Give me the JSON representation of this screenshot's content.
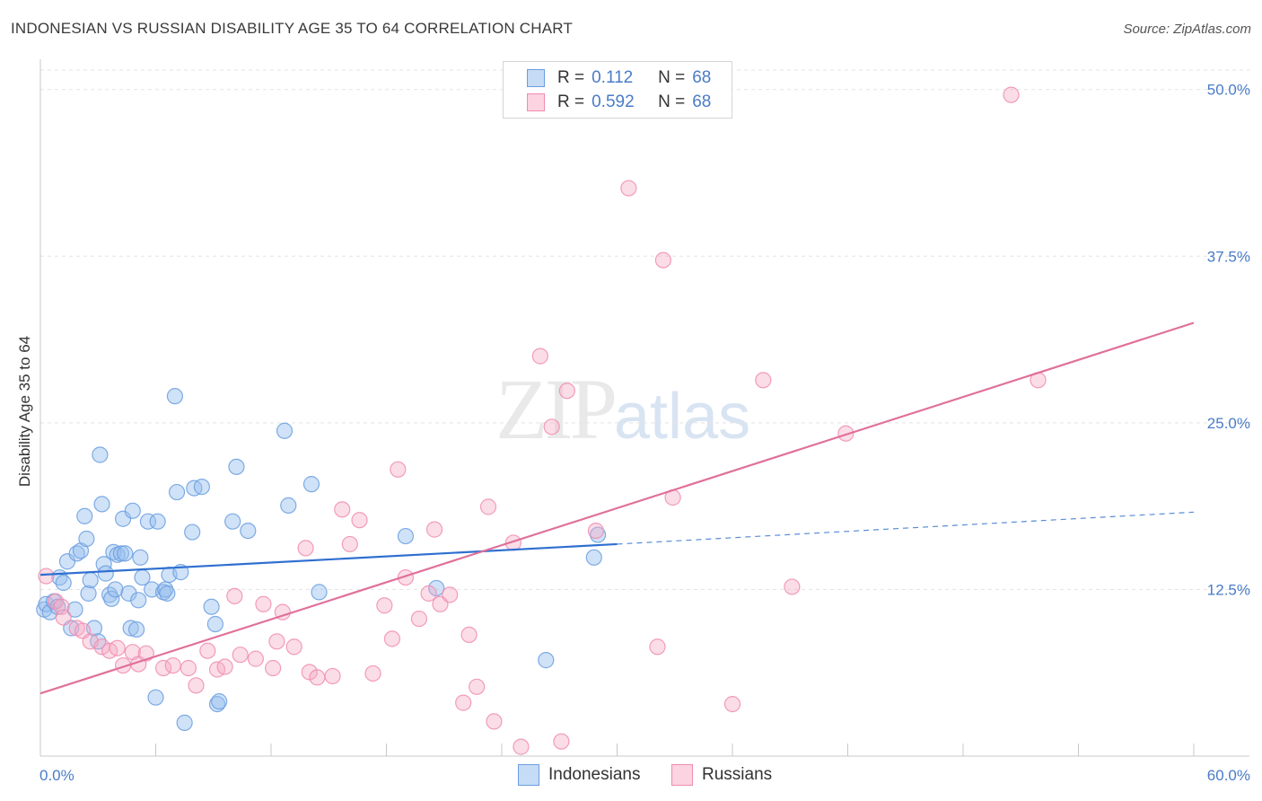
{
  "title": "INDONESIAN VS RUSSIAN DISABILITY AGE 35 TO 64 CORRELATION CHART",
  "source": "Source: ZipAtlas.com",
  "watermark": {
    "zip": "ZIP",
    "atlas": "atlas"
  },
  "legend": {
    "rows": [
      {
        "r_label": "R = ",
        "r_value": "0.112",
        "n_label": "N = ",
        "n_value": "68",
        "color": "#6a9ee0"
      },
      {
        "r_label": "R = ",
        "r_value": "0.592",
        "n_label": "N = ",
        "n_value": "68",
        "color": "#f08cb0"
      }
    ]
  },
  "bottom_legend": [
    {
      "label": "Indonesians",
      "color": "#6a9ee0"
    },
    {
      "label": "Russians",
      "color": "#f08cb0"
    }
  ],
  "chart_data": {
    "type": "scatter",
    "title": "INDONESIAN VS RUSSIAN DISABILITY AGE 35 TO 64 CORRELATION CHART",
    "xlabel": "",
    "ylabel": "Disability Age 35 to 64",
    "xlim": [
      0,
      60
    ],
    "ylim": [
      0,
      52
    ],
    "x_tick_labels": [
      "0.0%",
      "60.0%"
    ],
    "y_ticks": [
      12.5,
      25.0,
      37.5,
      50.0
    ],
    "y_tick_labels": [
      "12.5%",
      "25.0%",
      "37.5%",
      "50.0%"
    ],
    "grid": true,
    "series": [
      {
        "name": "Indonesians",
        "color": "#6a9ee0",
        "trend": {
          "x0": 0,
          "y0": 13.6,
          "x1": 30,
          "y1": 15.9,
          "dashed_to_x": 60,
          "dashed_to_y": 18.3
        },
        "points": [
          [
            0.2,
            11.0
          ],
          [
            0.3,
            11.4
          ],
          [
            0.5,
            10.8
          ],
          [
            0.7,
            11.6
          ],
          [
            0.9,
            11.2
          ],
          [
            1.0,
            13.4
          ],
          [
            1.2,
            13.0
          ],
          [
            1.4,
            14.6
          ],
          [
            1.6,
            9.6
          ],
          [
            1.8,
            11.0
          ],
          [
            1.9,
            15.2
          ],
          [
            2.1,
            15.4
          ],
          [
            2.3,
            18.0
          ],
          [
            2.4,
            16.3
          ],
          [
            2.5,
            12.2
          ],
          [
            2.6,
            13.2
          ],
          [
            2.8,
            9.6
          ],
          [
            3.0,
            8.6
          ],
          [
            3.1,
            22.6
          ],
          [
            3.2,
            18.9
          ],
          [
            3.3,
            14.4
          ],
          [
            3.4,
            13.7
          ],
          [
            3.6,
            12.1
          ],
          [
            3.7,
            11.8
          ],
          [
            3.8,
            15.3
          ],
          [
            3.9,
            12.5
          ],
          [
            4.0,
            15.1
          ],
          [
            4.2,
            15.2
          ],
          [
            4.3,
            17.8
          ],
          [
            4.4,
            15.2
          ],
          [
            4.6,
            12.2
          ],
          [
            4.7,
            9.6
          ],
          [
            4.8,
            18.4
          ],
          [
            5.0,
            9.5
          ],
          [
            5.1,
            11.7
          ],
          [
            5.2,
            14.9
          ],
          [
            5.3,
            13.4
          ],
          [
            5.6,
            17.6
          ],
          [
            5.8,
            12.5
          ],
          [
            6.0,
            4.4
          ],
          [
            6.1,
            17.6
          ],
          [
            6.4,
            12.3
          ],
          [
            6.5,
            12.5
          ],
          [
            6.6,
            12.2
          ],
          [
            6.7,
            13.6
          ],
          [
            7.0,
            27.0
          ],
          [
            7.1,
            19.8
          ],
          [
            7.3,
            13.8
          ],
          [
            7.5,
            2.5
          ],
          [
            7.9,
            16.8
          ],
          [
            8.0,
            20.1
          ],
          [
            8.4,
            20.2
          ],
          [
            8.9,
            11.2
          ],
          [
            9.1,
            9.9
          ],
          [
            9.2,
            3.9
          ],
          [
            9.3,
            4.1
          ],
          [
            10.0,
            17.6
          ],
          [
            10.2,
            21.7
          ],
          [
            10.8,
            16.9
          ],
          [
            12.7,
            24.4
          ],
          [
            12.9,
            18.8
          ],
          [
            14.1,
            20.4
          ],
          [
            14.5,
            12.3
          ],
          [
            19.0,
            16.5
          ],
          [
            20.6,
            12.6
          ],
          [
            26.3,
            7.2
          ],
          [
            28.8,
            14.9
          ],
          [
            29.0,
            16.6
          ]
        ]
      },
      {
        "name": "Russians",
        "color": "#f08cb0",
        "trend": {
          "x0": 0,
          "y0": 4.7,
          "x1": 60,
          "y1": 32.5
        },
        "points": [
          [
            0.3,
            13.5
          ],
          [
            0.8,
            11.6
          ],
          [
            1.1,
            11.2
          ],
          [
            1.2,
            10.4
          ],
          [
            1.9,
            9.6
          ],
          [
            2.2,
            9.4
          ],
          [
            2.6,
            8.6
          ],
          [
            3.2,
            8.2
          ],
          [
            3.6,
            7.9
          ],
          [
            4.0,
            8.1
          ],
          [
            4.3,
            6.8
          ],
          [
            4.8,
            7.8
          ],
          [
            5.1,
            6.9
          ],
          [
            5.5,
            7.7
          ],
          [
            6.4,
            6.6
          ],
          [
            6.9,
            6.8
          ],
          [
            7.7,
            6.6
          ],
          [
            8.1,
            5.3
          ],
          [
            8.7,
            7.9
          ],
          [
            9.2,
            6.5
          ],
          [
            9.6,
            6.7
          ],
          [
            10.1,
            12.0
          ],
          [
            10.4,
            7.6
          ],
          [
            11.2,
            7.3
          ],
          [
            11.6,
            11.4
          ],
          [
            12.1,
            6.6
          ],
          [
            12.3,
            8.6
          ],
          [
            12.6,
            10.8
          ],
          [
            13.2,
            8.2
          ],
          [
            13.8,
            15.6
          ],
          [
            14.0,
            6.3
          ],
          [
            14.4,
            5.9
          ],
          [
            15.2,
            6.0
          ],
          [
            15.7,
            18.5
          ],
          [
            16.1,
            15.9
          ],
          [
            16.6,
            17.7
          ],
          [
            17.3,
            6.2
          ],
          [
            17.9,
            11.3
          ],
          [
            18.3,
            8.8
          ],
          [
            18.6,
            21.5
          ],
          [
            19.0,
            13.4
          ],
          [
            19.7,
            10.3
          ],
          [
            20.2,
            12.2
          ],
          [
            20.5,
            17.0
          ],
          [
            20.8,
            11.4
          ],
          [
            21.3,
            12.1
          ],
          [
            22.0,
            4.0
          ],
          [
            22.3,
            9.1
          ],
          [
            22.7,
            5.2
          ],
          [
            23.3,
            18.7
          ],
          [
            23.6,
            2.6
          ],
          [
            24.6,
            16.0
          ],
          [
            25.0,
            0.7
          ],
          [
            26.0,
            30.0
          ],
          [
            26.6,
            24.7
          ],
          [
            27.1,
            1.1
          ],
          [
            27.4,
            27.4
          ],
          [
            28.9,
            16.9
          ],
          [
            30.6,
            42.6
          ],
          [
            32.1,
            8.2
          ],
          [
            32.4,
            37.2
          ],
          [
            32.9,
            19.4
          ],
          [
            36.0,
            3.9
          ],
          [
            37.6,
            28.2
          ],
          [
            39.1,
            12.7
          ],
          [
            41.9,
            24.2
          ],
          [
            50.5,
            49.6
          ],
          [
            51.9,
            28.2
          ]
        ]
      }
    ]
  }
}
